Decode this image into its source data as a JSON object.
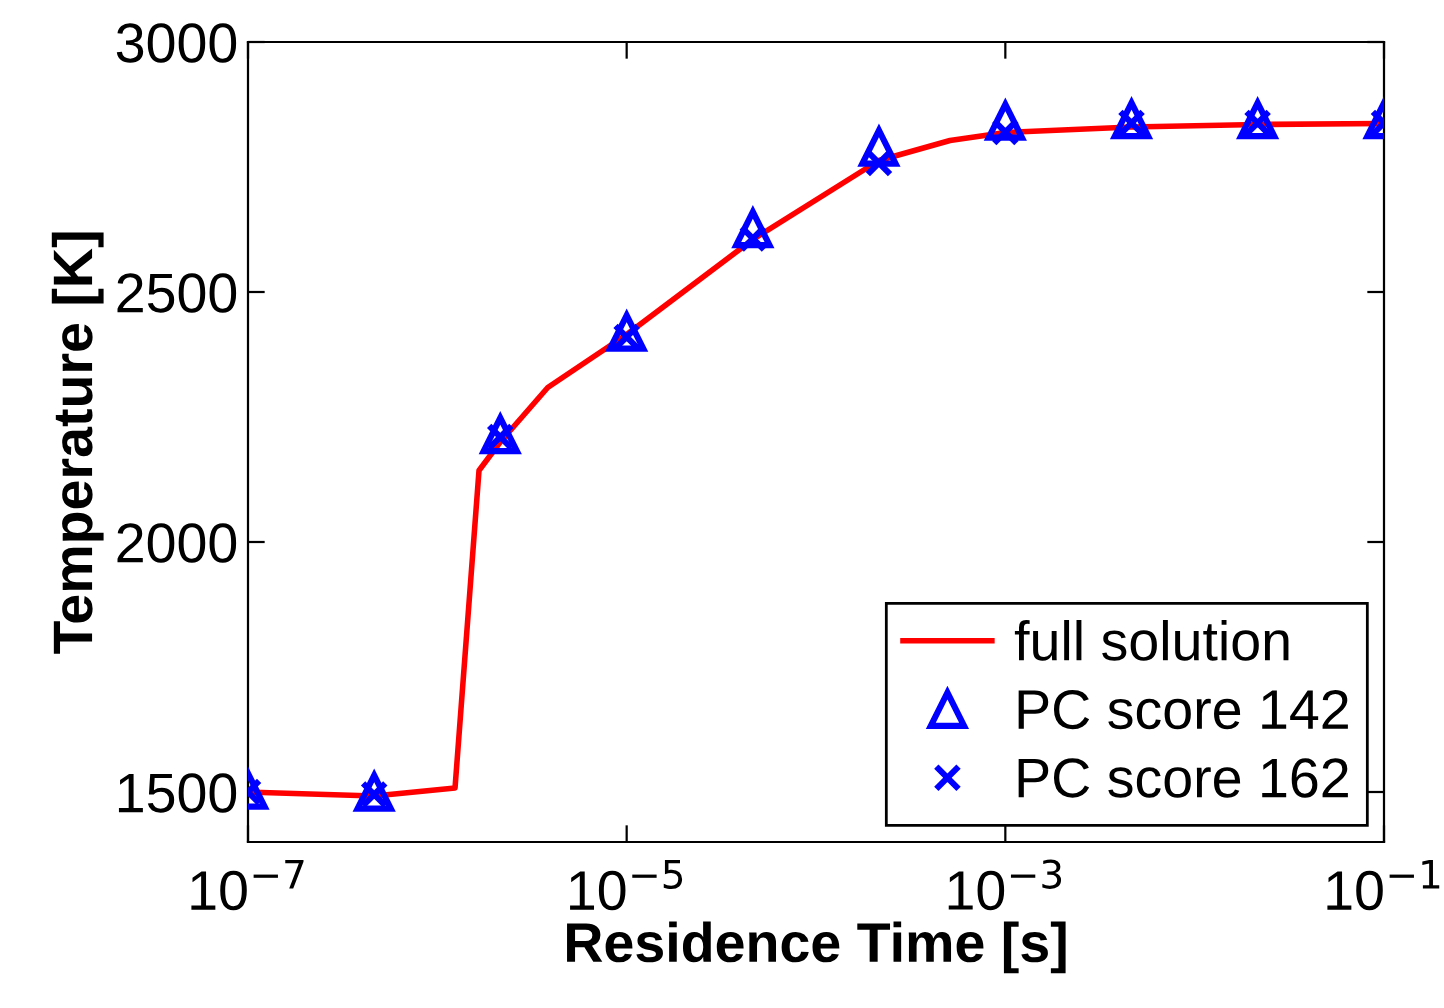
{
  "chart_data": {
    "type": "line",
    "xlabel": "Residence Time [s]",
    "ylabel": "Temperature [K]",
    "log": "x",
    "xlim": [
      1e-07,
      0.1
    ],
    "xticks": [
      {
        "value": 1e-07,
        "label": "10$^{−7}$"
      },
      {
        "value": 1e-05,
        "label": "10$^{−5}$"
      },
      {
        "value": 0.001,
        "label": "10$^{−3}$"
      },
      {
        "value": 0.1,
        "label": "10$^{−1}$"
      }
    ],
    "ylim": [
      1400,
      3000
    ],
    "yticks": [
      1500,
      2000,
      2500,
      3000
    ],
    "grid": false,
    "legend": "bottom right",
    "series": [
      {
        "name": "full solution",
        "color": "#ff0000",
        "marker": "none",
        "line_style": "solid",
        "x": [
          1e-07,
          4.64e-07,
          1.24e-06,
          1.66e-06,
          2.15e-06,
          3.83e-06,
          1e-05,
          4.64e-05,
          0.000215,
          0.00051,
          0.001,
          0.00464,
          0.0215,
          0.1
        ],
        "values": [
          1500,
          1492,
          1508,
          2143,
          2200,
          2309,
          2415,
          2605,
          2763,
          2803,
          2819,
          2830,
          2835,
          2837
        ]
      },
      {
        "name": "PC score 142",
        "type": "scatter",
        "color": "#0000ff",
        "marker": "triangle",
        "x": [
          1e-07,
          4.64e-07,
          2.15e-06,
          1e-05,
          4.64e-05,
          0.000215,
          0.001,
          0.00464,
          0.0215,
          0.1
        ],
        "values": [
          1504,
          1500,
          2215,
          2420,
          2627,
          2790,
          2842,
          2845,
          2845,
          2845
        ]
      },
      {
        "name": "PC score 162",
        "type": "scatter",
        "color": "#0000ff",
        "marker": "cross",
        "x": [
          1e-07,
          4.64e-07,
          2.15e-06,
          1e-05,
          4.64e-05,
          0.000215,
          0.001,
          0.00464,
          0.0215,
          0.1
        ],
        "values": [
          1500,
          1495,
          2210,
          2410,
          2607,
          2758,
          2820,
          2838,
          2838,
          2838
        ]
      }
    ]
  }
}
